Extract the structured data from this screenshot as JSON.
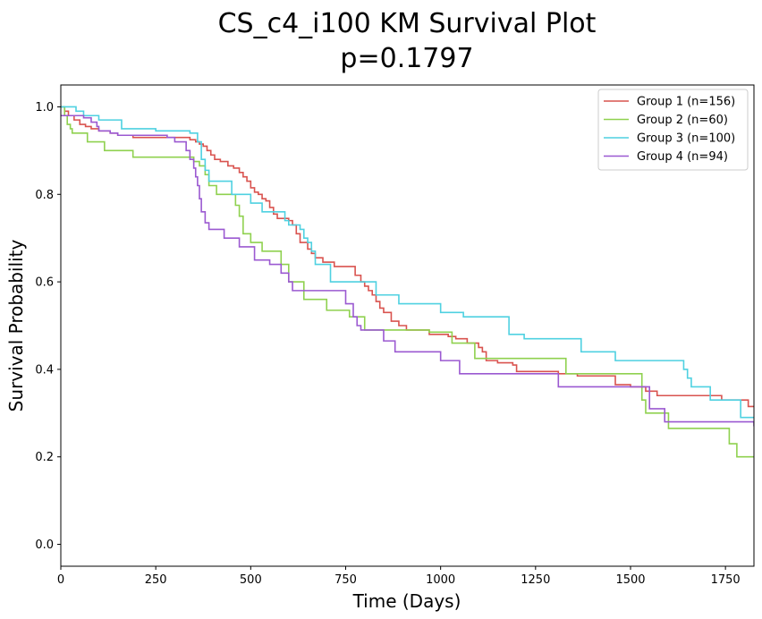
{
  "chart_data": {
    "type": "line",
    "step": true,
    "title": "CS_c4_i100 KM Survival Plot",
    "subtitle": "p=0.1797",
    "xlabel": "Time (Days)",
    "ylabel": "Survival Probability",
    "xlim": [
      0,
      1825
    ],
    "ylim": [
      -0.05,
      1.05
    ],
    "xticks": [
      0,
      250,
      500,
      750,
      1000,
      1250,
      1500,
      1750
    ],
    "yticks": [
      0.0,
      0.2,
      0.4,
      0.6,
      0.8,
      1.0
    ],
    "xtick_labels": [
      "0",
      "250",
      "500",
      "750",
      "1000",
      "1250",
      "1500",
      "1750"
    ],
    "ytick_labels": [
      "0.0",
      "0.2",
      "0.4",
      "0.6",
      "0.8",
      "1.0"
    ],
    "grid": false,
    "legend_position": "top-right",
    "series": [
      {
        "name": "Group 1 (n=156)",
        "color": "#d9534f",
        "x": [
          0,
          10,
          20,
          35,
          50,
          65,
          80,
          100,
          130,
          150,
          190,
          250,
          340,
          355,
          365,
          375,
          385,
          395,
          405,
          420,
          440,
          455,
          470,
          480,
          490,
          500,
          510,
          520,
          530,
          540,
          550,
          560,
          570,
          600,
          610,
          620,
          630,
          650,
          660,
          670,
          690,
          720,
          775,
          790,
          800,
          810,
          820,
          830,
          840,
          850,
          870,
          890,
          910,
          970,
          1020,
          1040,
          1070,
          1100,
          1110,
          1120,
          1150,
          1190,
          1200,
          1310,
          1360,
          1460,
          1500,
          1540,
          1570,
          1650,
          1740,
          1810,
          1825
        ],
        "y": [
          1.0,
          0.99,
          0.98,
          0.97,
          0.96,
          0.955,
          0.95,
          0.945,
          0.94,
          0.935,
          0.93,
          0.93,
          0.925,
          0.92,
          0.915,
          0.91,
          0.9,
          0.89,
          0.88,
          0.875,
          0.865,
          0.86,
          0.85,
          0.84,
          0.83,
          0.815,
          0.805,
          0.8,
          0.79,
          0.785,
          0.77,
          0.755,
          0.745,
          0.74,
          0.73,
          0.71,
          0.69,
          0.675,
          0.665,
          0.655,
          0.645,
          0.635,
          0.615,
          0.6,
          0.59,
          0.58,
          0.57,
          0.555,
          0.54,
          0.53,
          0.51,
          0.5,
          0.49,
          0.48,
          0.475,
          0.47,
          0.46,
          0.45,
          0.44,
          0.42,
          0.415,
          0.41,
          0.395,
          0.39,
          0.385,
          0.365,
          0.36,
          0.35,
          0.34,
          0.34,
          0.33,
          0.315,
          0.315
        ]
      },
      {
        "name": "Group 2 (n=60)",
        "color": "#8fd14f",
        "x": [
          0,
          10,
          17,
          25,
          30,
          70,
          115,
          190,
          350,
          365,
          380,
          390,
          410,
          460,
          470,
          480,
          500,
          530,
          580,
          600,
          640,
          700,
          760,
          800,
          970,
          1030,
          1090,
          1330,
          1530,
          1540,
          1600,
          1760,
          1780,
          1825
        ],
        "y": [
          1.0,
          0.98,
          0.96,
          0.95,
          0.94,
          0.92,
          0.9,
          0.885,
          0.875,
          0.865,
          0.845,
          0.82,
          0.8,
          0.775,
          0.75,
          0.71,
          0.69,
          0.67,
          0.64,
          0.6,
          0.56,
          0.535,
          0.52,
          0.49,
          0.485,
          0.46,
          0.425,
          0.39,
          0.33,
          0.3,
          0.265,
          0.23,
          0.2,
          0.2
        ]
      },
      {
        "name": "Group 3 (n=100)",
        "color": "#4fd1e1",
        "x": [
          0,
          40,
          60,
          100,
          160,
          250,
          340,
          360,
          370,
          380,
          390,
          450,
          500,
          530,
          590,
          600,
          630,
          640,
          650,
          660,
          670,
          710,
          750,
          830,
          890,
          1000,
          1060,
          1180,
          1220,
          1370,
          1460,
          1640,
          1650,
          1660,
          1710,
          1790,
          1825
        ],
        "y": [
          1.0,
          0.99,
          0.98,
          0.97,
          0.95,
          0.945,
          0.94,
          0.92,
          0.88,
          0.855,
          0.83,
          0.8,
          0.78,
          0.76,
          0.74,
          0.73,
          0.72,
          0.7,
          0.69,
          0.67,
          0.64,
          0.6,
          0.6,
          0.57,
          0.55,
          0.53,
          0.52,
          0.48,
          0.47,
          0.44,
          0.42,
          0.4,
          0.38,
          0.36,
          0.33,
          0.29,
          0.29
        ]
      },
      {
        "name": "Group 4 (n=94)",
        "color": "#9b59d1",
        "x": [
          0,
          60,
          80,
          95,
          100,
          130,
          150,
          280,
          300,
          330,
          340,
          350,
          355,
          360,
          365,
          370,
          380,
          390,
          430,
          470,
          510,
          550,
          580,
          600,
          610,
          610,
          750,
          770,
          780,
          790,
          850,
          880,
          1000,
          1050,
          1310,
          1460,
          1550,
          1590,
          1825
        ],
        "y": [
          0.98,
          0.975,
          0.965,
          0.955,
          0.945,
          0.94,
          0.935,
          0.93,
          0.92,
          0.9,
          0.88,
          0.86,
          0.84,
          0.82,
          0.79,
          0.76,
          0.735,
          0.72,
          0.7,
          0.68,
          0.65,
          0.64,
          0.62,
          0.6,
          0.58,
          0.58,
          0.55,
          0.52,
          0.5,
          0.49,
          0.465,
          0.44,
          0.42,
          0.39,
          0.36,
          0.36,
          0.31,
          0.28,
          0.27
        ]
      }
    ]
  }
}
